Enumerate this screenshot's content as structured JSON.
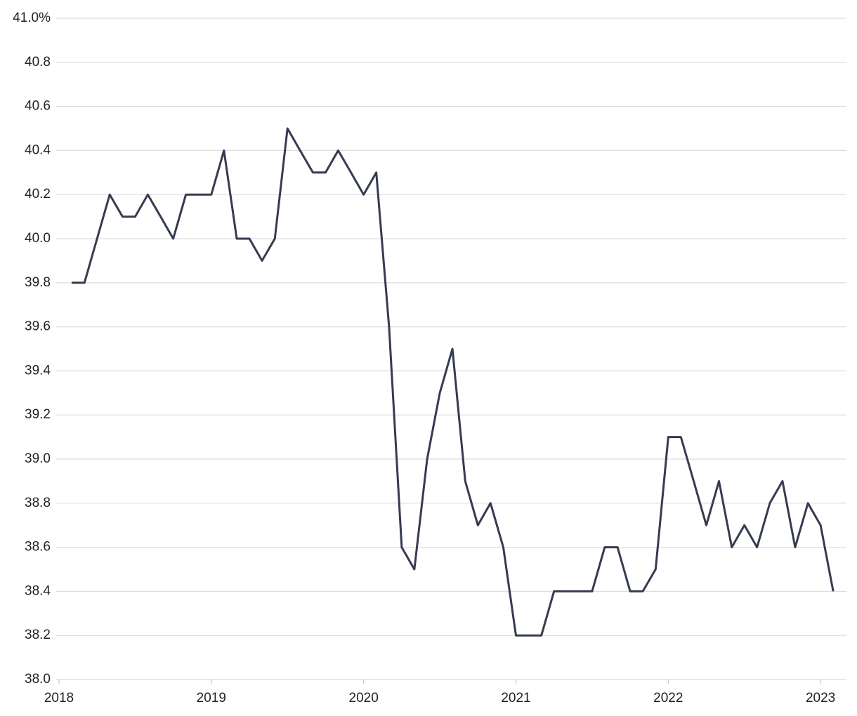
{
  "chart_data": {
    "type": "line",
    "x": [
      2018.083,
      2018.167,
      2018.25,
      2018.333,
      2018.417,
      2018.5,
      2018.583,
      2018.667,
      2018.75,
      2018.833,
      2018.917,
      2019.0,
      2019.083,
      2019.167,
      2019.25,
      2019.333,
      2019.417,
      2019.5,
      2019.583,
      2019.667,
      2019.75,
      2019.833,
      2019.917,
      2020.0,
      2020.083,
      2020.167,
      2020.25,
      2020.333,
      2020.417,
      2020.5,
      2020.583,
      2020.667,
      2020.75,
      2020.833,
      2020.917,
      2021.0,
      2021.083,
      2021.167,
      2021.25,
      2021.333,
      2021.417,
      2021.5,
      2021.583,
      2021.667,
      2021.75,
      2021.833,
      2021.917,
      2022.0,
      2022.083,
      2022.167,
      2022.25,
      2022.333,
      2022.417,
      2022.5,
      2022.583,
      2022.667,
      2022.75,
      2022.833,
      2022.917,
      2023.0,
      2023.083
    ],
    "series": [
      {
        "color": "#353b52",
        "values": [
          39.8,
          39.8,
          40.0,
          40.2,
          40.1,
          40.1,
          40.2,
          40.1,
          40.0,
          40.2,
          40.2,
          40.2,
          40.4,
          40.0,
          40.0,
          39.9,
          40.0,
          40.5,
          40.4,
          40.3,
          40.3,
          40.4,
          40.3,
          40.2,
          40.3,
          39.6,
          38.6,
          38.5,
          39.0,
          39.3,
          39.5,
          38.9,
          38.7,
          38.8,
          38.6,
          38.2,
          38.2,
          38.2,
          38.4,
          38.4,
          38.4,
          38.4,
          38.6,
          38.6,
          38.4,
          38.4,
          38.5,
          39.1,
          39.1,
          38.9,
          38.7,
          38.9,
          38.6,
          38.7,
          38.6,
          38.8,
          38.9,
          38.6,
          38.8,
          38.7,
          38.4
        ]
      }
    ],
    "xlim": [
      2018,
      2023.17
    ],
    "xticks": [
      2018,
      2019,
      2020,
      2021,
      2022,
      2023
    ],
    "ylim": [
      38,
      41
    ],
    "yticks": [
      {
        "value": 38,
        "label": "38.0"
      },
      38.2,
      38.4,
      38.6,
      38.8,
      {
        "value": 39,
        "label": "39.0"
      },
      39.2,
      39.4,
      39.6,
      39.8,
      {
        "value": 40,
        "label": "40.0"
      },
      40.2,
      40.4,
      40.6,
      40.8,
      {
        "value": 41,
        "label": "41.0%"
      }
    ],
    "grid": true
  }
}
